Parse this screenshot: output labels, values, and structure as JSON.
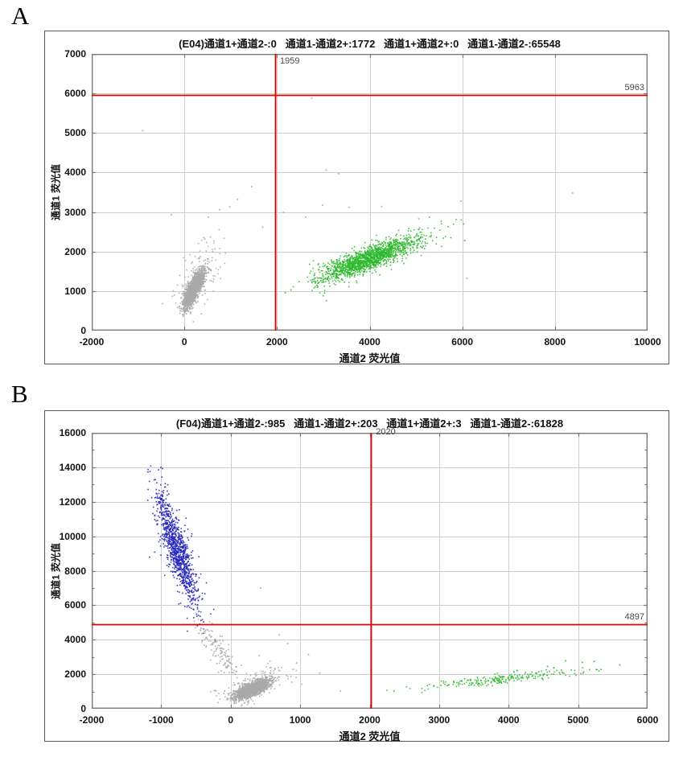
{
  "figure": {
    "label_a": "A",
    "label_b": "B"
  },
  "colors": {
    "red": "#dd0000",
    "green": "#2eb82e",
    "gray": "#a9a9a9",
    "blue": "#2121bf",
    "grid": "#cfcfcf",
    "axis": "#7a7a7a",
    "text": "#111111",
    "crosshair_label": "#4a4a4a"
  },
  "chart_data": [
    {
      "id": "E04",
      "type": "scatter",
      "title": "(E04)通道1+通道2-:0   通道1-通道2+:1772   通道1+通道2+:0   通道1-通道2-:65548",
      "quadrant_counts": {
        "ch1pos_ch2neg": 0,
        "ch1neg_ch2pos": 1772,
        "ch1pos_ch2pos": 0,
        "ch1neg_ch2neg": 65548
      },
      "xlabel": "通道2  荧光值",
      "ylabel": "通道1  荧光值",
      "xlim": [
        -2000,
        10000
      ],
      "ylim": [
        0,
        7000
      ],
      "xticks": [
        -2000,
        0,
        2000,
        4000,
        6000,
        8000,
        10000
      ],
      "yticks": [
        0,
        1000,
        2000,
        3000,
        4000,
        5000,
        6000,
        7000
      ],
      "y_minor_step": 0,
      "grid": true,
      "legend": false,
      "crosshair": {
        "x": 1959,
        "y": 5963,
        "x_label": "1959",
        "y_label": "5963"
      },
      "seed": 1234,
      "clusters": [
        {
          "name": "ch2neg-gray-halo",
          "color": "gray",
          "n": 170,
          "x0": -30,
          "y0": 560,
          "x1": 620,
          "y1": 2150,
          "t_sigma": 0.3,
          "sx": 160,
          "sy": 230
        },
        {
          "name": "ch2neg-gray-core",
          "color": "gray",
          "n": 1700,
          "x0": -30,
          "y0": 520,
          "x1": 430,
          "y1": 1560,
          "t_sigma": 0.2,
          "sx": 55,
          "sy": 95
        },
        {
          "name": "ch2pos-green-halo",
          "color": "green",
          "n": 130,
          "x0": 2650,
          "y0": 1150,
          "x1": 5700,
          "y1": 2600,
          "t_sigma": 0.27,
          "sx": 260,
          "sy": 230
        },
        {
          "name": "ch2pos-green-core",
          "color": "green",
          "n": 1500,
          "x0": 2650,
          "y0": 1180,
          "x1": 5250,
          "y1": 2430,
          "t_sigma": 0.19,
          "sx": 170,
          "sy": 120
        }
      ],
      "outliers": [
        {
          "color": "gray",
          "points": [
            [
              -900,
              5060
            ],
            [
              2750,
              5880
            ],
            [
              1450,
              3640
            ],
            [
              1150,
              3320
            ],
            [
              980,
              3130
            ],
            [
              760,
              3060
            ],
            [
              520,
              2870
            ],
            [
              -280,
              2930
            ],
            [
              3060,
              4060
            ],
            [
              3330,
              3970
            ],
            [
              2980,
              3170
            ],
            [
              3560,
              3120
            ],
            [
              4260,
              3140
            ],
            [
              2620,
              2870
            ],
            [
              5060,
              2830
            ],
            [
              8380,
              3480
            ],
            [
              6100,
              1320
            ],
            [
              2140,
              2990
            ],
            [
              1690,
              2620
            ],
            [
              420,
              2350
            ]
          ]
        },
        {
          "color": "green",
          "points": [
            [
              2300,
              1030
            ],
            [
              2180,
              960
            ],
            [
              6050,
              2280
            ]
          ]
        }
      ]
    },
    {
      "id": "F04",
      "type": "scatter",
      "title": "(F04)通道1+通道2-:985   通道1-通道2+:203   通道1+通道2+:3   通道1-通道2-:61828",
      "quadrant_counts": {
        "ch1pos_ch2neg": 985,
        "ch1neg_ch2pos": 203,
        "ch1pos_ch2pos": 3,
        "ch1neg_ch2neg": 61828
      },
      "xlabel": "通道2  荧光值",
      "ylabel": "通道1  荧光值",
      "xlim": [
        -2000,
        6000
      ],
      "ylim": [
        0,
        16000
      ],
      "xticks": [
        -2000,
        -1000,
        0,
        1000,
        2000,
        3000,
        4000,
        5000,
        6000
      ],
      "yticks": [
        0,
        2000,
        4000,
        6000,
        8000,
        10000,
        12000,
        14000,
        16000
      ],
      "y_minor_step": 1000,
      "grid": true,
      "legend": false,
      "crosshair": {
        "x": 2020,
        "y": 4897,
        "x_label": "2020",
        "y_label": "4897"
      },
      "seed": 5678,
      "clusters": [
        {
          "name": "ch1pos-blue-halo",
          "color": "blue",
          "n": 90,
          "x0": -1090,
          "y0": 13100,
          "x1": -430,
          "y1": 5100,
          "t_sigma": 0.3,
          "sx": 140,
          "sy": 700
        },
        {
          "name": "ch1pos-blue-core",
          "color": "blue",
          "n": 950,
          "x0": -1090,
          "y0": 13100,
          "x1": -440,
          "y1": 5150,
          "t_sigma": 0.2,
          "sx": 68,
          "sy": 420
        },
        {
          "name": "transition-gray-tail",
          "color": "gray",
          "n": 140,
          "x0": -430,
          "y0": 4850,
          "x1": 60,
          "y1": 2050,
          "t_sigma": 0.3,
          "sx": 75,
          "sy": 280
        },
        {
          "name": "ch2neg-gray-halo",
          "color": "gray",
          "n": 160,
          "x0": 40,
          "y0": 600,
          "x1": 700,
          "y1": 2300,
          "t_sigma": 0.3,
          "sx": 170,
          "sy": 300
        },
        {
          "name": "ch2neg-gray-core",
          "color": "gray",
          "n": 1700,
          "x0": 70,
          "y0": 520,
          "x1": 540,
          "y1": 1760,
          "t_sigma": 0.21,
          "sx": 75,
          "sy": 120
        },
        {
          "name": "ch2pos-green-band",
          "color": "green",
          "n": 230,
          "x0": 2560,
          "y0": 1120,
          "x1": 5260,
          "y1": 2330,
          "t_sigma": 0.22,
          "sx": 210,
          "sy": 110
        }
      ],
      "outliers": [
        {
          "color": "gray",
          "points": [
            [
              430,
              7000
            ],
            [
              1580,
              1030
            ],
            [
              950,
              2650
            ],
            [
              820,
              3780
            ],
            [
              -120,
              3280
            ],
            [
              700,
              4280
            ],
            [
              1280,
              2070
            ],
            [
              900,
              2280
            ],
            [
              1120,
              3140
            ]
          ]
        },
        {
          "color": "green",
          "points": [
            [
              4820,
              2780
            ],
            [
              5060,
              2690
            ],
            [
              5230,
              2740
            ],
            [
              4560,
              2450
            ],
            [
              5600,
              2540
            ],
            [
              2350,
              1020
            ]
          ]
        }
      ]
    }
  ]
}
